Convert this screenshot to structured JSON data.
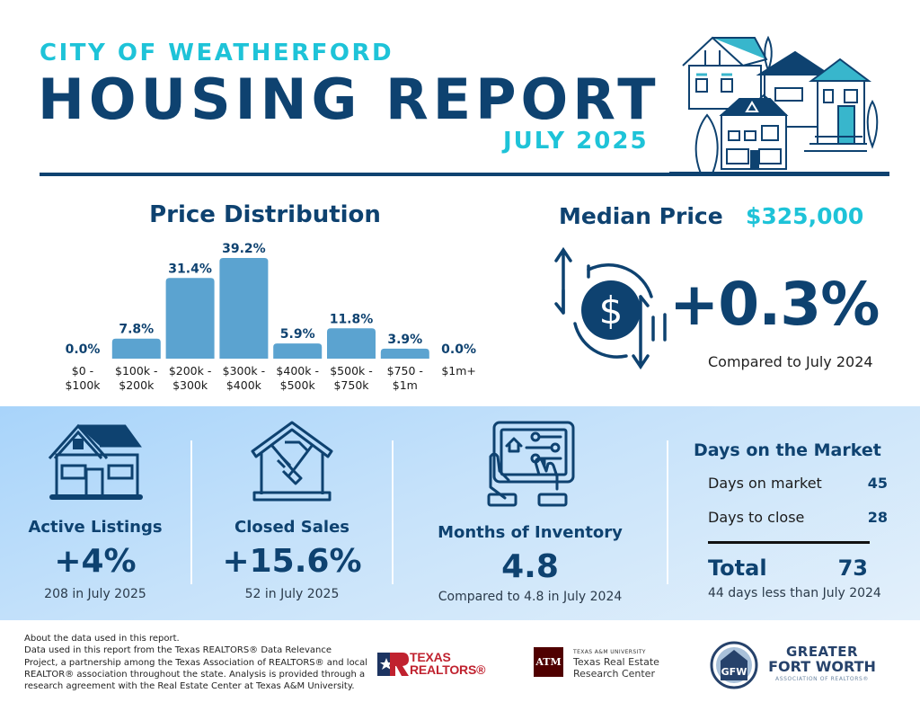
{
  "header": {
    "subtitle": "CITY OF WEATHERFORD",
    "title": "HOUSING REPORT",
    "month": "JULY 2025"
  },
  "colors": {
    "navy": "#0e4270",
    "cyan": "#1ec3d8",
    "bar": "#5ba3d0",
    "band_start": "#a8d4fa",
    "band_end": "#e3f0fb"
  },
  "chart_data": {
    "type": "bar",
    "title": "Price Distribution",
    "categories": [
      "$0 - $100k",
      "$100k - $200k",
      "$200k - $300k",
      "$300k - $400k",
      "$400k - $500k",
      "$500k - $750k",
      "$750 - $1m",
      "$1m+"
    ],
    "category_lines": [
      [
        "$0 -",
        "$100k"
      ],
      [
        "$100k -",
        "$200k"
      ],
      [
        "$200k -",
        "$300k"
      ],
      [
        "$300k -",
        "$400k"
      ],
      [
        "$400k -",
        "$500k"
      ],
      [
        "$500k -",
        "$750k"
      ],
      [
        "$750 -",
        "$1m"
      ],
      [
        "$1m+",
        ""
      ]
    ],
    "values": [
      0.0,
      7.8,
      31.4,
      39.2,
      5.9,
      11.8,
      3.9,
      0.0
    ],
    "value_labels": [
      "0.0%",
      "7.8%",
      "31.4%",
      "39.2%",
      "5.9%",
      "11.8%",
      "3.9%",
      "0.0%"
    ],
    "unit": "%",
    "xlabel": "",
    "ylabel": "",
    "ylim": [
      0,
      40
    ],
    "grid": false,
    "legend": "none"
  },
  "median_price": {
    "label": "Median Price",
    "value": "$325,000",
    "change": "+0.3%",
    "compare": "Compared to July 2024"
  },
  "cards": [
    {
      "label": "Active Listings",
      "value": "+4%",
      "sub": "208 in July 2025",
      "icon": "house-icon"
    },
    {
      "label": "Closed Sales",
      "value": "+15.6%",
      "sub": "52 in July 2025",
      "icon": "handshake-house-icon"
    },
    {
      "label": "Months of Inventory",
      "value": "4.8",
      "sub": "Compared to 4.8 in July 2024",
      "icon": "tablet-hands-icon"
    }
  ],
  "days_on_market": {
    "title": "Days on the Market",
    "rows": [
      {
        "label": "Days on market",
        "value": "45"
      },
      {
        "label": "Days to close",
        "value": "28"
      }
    ],
    "total_label": "Total",
    "total_value": "73",
    "note": "44 days less than July 2024"
  },
  "footer": {
    "lines": [
      "About the data used in this report.",
      "Data used in this report from the Texas REALTORS® Data Relevance",
      "Project, a partnership among the Texas Association of REALTORS® and local",
      "REALTOR® association throughout the state. Analysis is provided through a",
      "research agreement with the Real Estate Center at Texas A&M University."
    ],
    "logos": {
      "texas_realtors": [
        "TEXAS",
        "REALTORS®"
      ],
      "tamu_small": "TEXAS A&M UNIVERSITY",
      "tamu_mark": "ATM",
      "tamu_name": [
        "Texas Real Estate",
        "Research Center"
      ],
      "gfw": [
        "GREATER",
        "FORT WORTH",
        "ASSOCIATION OF REALTORS®"
      ],
      "gfw_mark": "GFW"
    }
  }
}
